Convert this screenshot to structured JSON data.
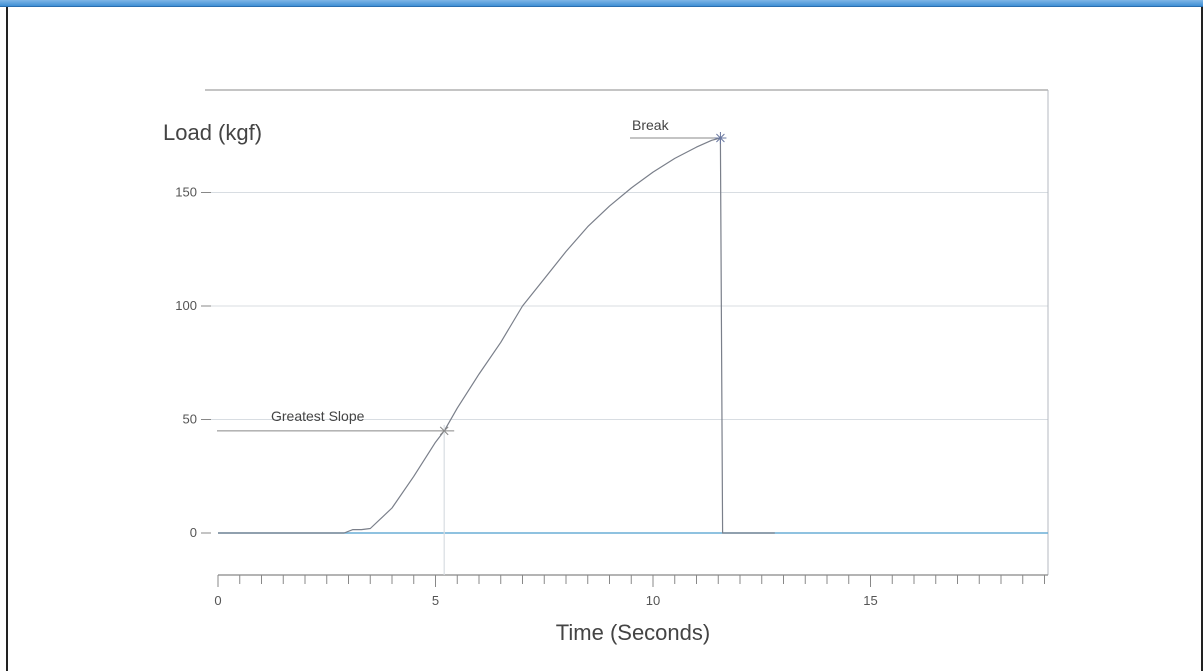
{
  "chart_data": {
    "type": "line",
    "ylabel": "Load (kgf)",
    "xlabel": "Time (Seconds)",
    "xlim": [
      0,
      19
    ],
    "ylim": [
      -20,
      180
    ],
    "x_ticks": [
      0,
      5,
      10,
      15
    ],
    "y_ticks": [
      0,
      50,
      100,
      150
    ],
    "x_minor_step": 0.5,
    "grid": true,
    "colors": {
      "curve": "#7a7f8a",
      "baseline": "#6aaed6",
      "grid": "#d8dde2",
      "axis": "#888888"
    },
    "series": [
      {
        "x": [
          0,
          2.9,
          3.1,
          3.3,
          3.5,
          4.0,
          4.5,
          5.0,
          5.2,
          5.5,
          6.0,
          6.5,
          7.0,
          7.5,
          8.0,
          8.5,
          9.0,
          9.5,
          10.0,
          10.5,
          11.0,
          11.35,
          11.55,
          11.6,
          12.8
        ],
        "y": [
          0,
          0,
          1.5,
          1.5,
          2,
          11,
          25,
          40,
          45,
          55,
          70,
          84,
          100,
          112,
          124,
          135,
          144,
          152,
          159,
          165,
          170,
          173,
          174,
          0,
          0
        ]
      }
    ],
    "annotations": [
      {
        "text": "Greatest Slope",
        "x": 5.2,
        "y": 45
      },
      {
        "text": "Break",
        "x": 11.55,
        "y": 174
      }
    ]
  }
}
